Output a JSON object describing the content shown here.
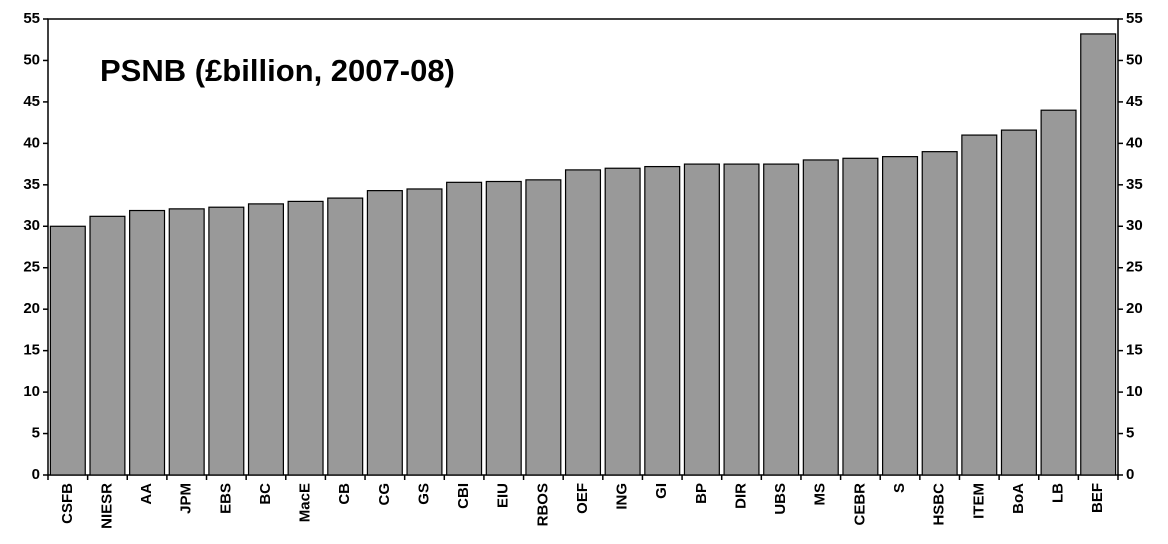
{
  "chart_data": {
    "type": "bar",
    "title": "PSNB (£billion, 2007-08)",
    "categories": [
      "CSFB",
      "NIESR",
      "AA",
      "JPM",
      "EBS",
      "BC",
      "MacE",
      "CB",
      "CG",
      "GS",
      "CBI",
      "EIU",
      "RBOS",
      "OEF",
      "ING",
      "GI",
      "BP",
      "DIR",
      "UBS",
      "MS",
      "CEBR",
      "S",
      "HSBC",
      "ITEM",
      "BoA",
      "LB",
      "BEF"
    ],
    "values": [
      30.0,
      31.2,
      31.9,
      32.1,
      32.3,
      32.7,
      33.0,
      33.4,
      34.3,
      34.5,
      35.3,
      35.4,
      35.6,
      36.8,
      37.0,
      37.2,
      37.5,
      37.5,
      37.5,
      38.0,
      38.2,
      38.4,
      39.0,
      41.0,
      41.6,
      44.0,
      53.2
    ],
    "color": "#999999",
    "ylim": [
      0,
      55
    ],
    "yticks": [
      0,
      5,
      10,
      15,
      20,
      25,
      30,
      35,
      40,
      45,
      50,
      55
    ],
    "y2lim": [
      0,
      55
    ],
    "y2ticks": [
      0,
      5,
      10,
      15,
      20,
      25,
      30,
      35,
      40,
      45,
      50,
      55
    ],
    "grid": false
  }
}
